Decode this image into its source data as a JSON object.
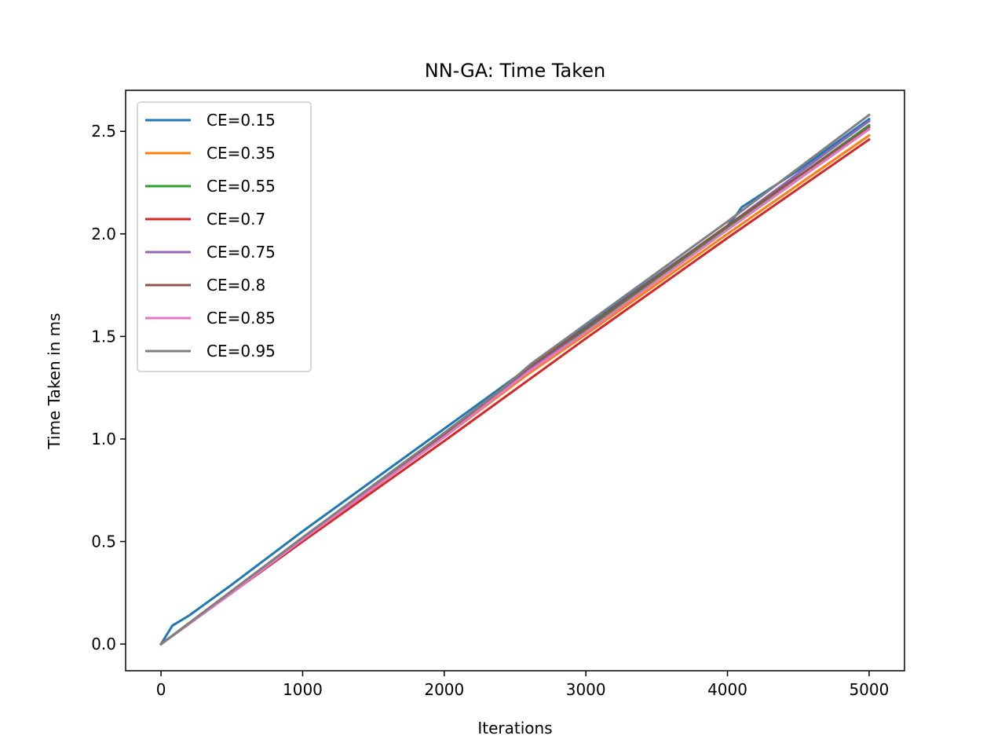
{
  "chart_data": {
    "type": "line",
    "title": "NN-GA: Time Taken",
    "xlabel": "Iterations",
    "ylabel": "Time Taken in ms",
    "xlim": [
      -250,
      5250
    ],
    "ylim": [
      -0.13,
      2.7
    ],
    "xticks": [
      0,
      1000,
      2000,
      3000,
      4000,
      5000
    ],
    "xtick_labels": [
      "0",
      "1000",
      "2000",
      "3000",
      "4000",
      "5000"
    ],
    "yticks": [
      0.0,
      0.5,
      1.0,
      1.5,
      2.0,
      2.5
    ],
    "ytick_labels": [
      "0.0",
      "0.5",
      "1.0",
      "1.5",
      "2.0",
      "2.5"
    ],
    "grid": false,
    "legend_position": "top-left",
    "series": [
      {
        "name": "CE=0.15",
        "color": "#1f77b4",
        "x": [
          0,
          80,
          200,
          500,
          1000,
          2000,
          3000,
          4000,
          4060,
          4100,
          4500,
          5000
        ],
        "y": [
          0.0,
          0.09,
          0.14,
          0.29,
          0.55,
          1.05,
          1.55,
          2.04,
          2.09,
          2.13,
          2.31,
          2.56
        ]
      },
      {
        "name": "CE=0.35",
        "color": "#ff7f0e",
        "x": [
          0,
          500,
          1000,
          2000,
          2600,
          3000,
          4000,
          5000
        ],
        "y": [
          0.0,
          0.25,
          0.51,
          1.01,
          1.32,
          1.51,
          2.0,
          2.48
        ]
      },
      {
        "name": "CE=0.55",
        "color": "#2ca02c",
        "x": [
          0,
          500,
          1000,
          2000,
          2600,
          3000,
          4000,
          5000
        ],
        "y": [
          0.0,
          0.25,
          0.51,
          1.02,
          1.34,
          1.53,
          2.03,
          2.53
        ]
      },
      {
        "name": "CE=0.7",
        "color": "#d62728",
        "x": [
          0,
          500,
          1000,
          2000,
          3000,
          4000,
          5000
        ],
        "y": [
          0.0,
          0.25,
          0.5,
          0.99,
          1.49,
          1.98,
          2.46
        ]
      },
      {
        "name": "CE=0.75",
        "color": "#9467bd",
        "x": [
          0,
          500,
          1000,
          2000,
          2600,
          3000,
          4000,
          5000
        ],
        "y": [
          0.0,
          0.25,
          0.51,
          1.02,
          1.34,
          1.54,
          2.04,
          2.55
        ]
      },
      {
        "name": "CE=0.8",
        "color": "#8c564b",
        "x": [
          0,
          500,
          1000,
          2000,
          2600,
          3000,
          4000,
          5000
        ],
        "y": [
          0.0,
          0.25,
          0.51,
          1.02,
          1.35,
          1.54,
          2.04,
          2.52
        ]
      },
      {
        "name": "CE=0.85",
        "color": "#e377c2",
        "x": [
          0,
          500,
          1000,
          2000,
          2600,
          3000,
          4000,
          5000
        ],
        "y": [
          0.0,
          0.25,
          0.51,
          1.01,
          1.33,
          1.52,
          2.02,
          2.51
        ]
      },
      {
        "name": "CE=0.95",
        "color": "#7f7f7f",
        "x": [
          0,
          500,
          1000,
          2000,
          2400,
          2620,
          3000,
          4000,
          5000
        ],
        "y": [
          0.0,
          0.26,
          0.52,
          1.03,
          1.24,
          1.37,
          1.56,
          2.06,
          2.58
        ]
      }
    ]
  }
}
